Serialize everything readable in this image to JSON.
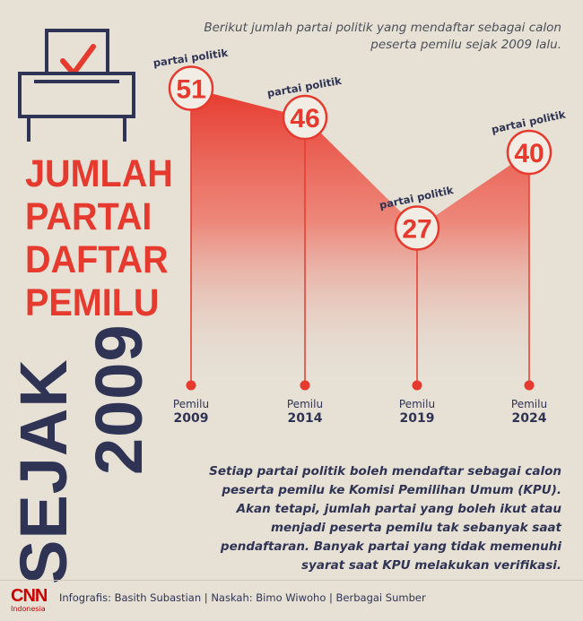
{
  "header": {
    "intro": "Berikut jumlah partai politik yang mendaftar sebagai calon peserta pemilu sejak 2009 lalu."
  },
  "title": {
    "line1": "JUMLAH",
    "line2": "PARTAI",
    "line3": "DAFTAR",
    "line4": "PEMILU",
    "vertical1": "SEJAK",
    "vertical2": "2009"
  },
  "description": "Setiap partai politik boleh mendaftar sebagai calon peserta pemilu ke Komisi Pemilihan Umum (KPU). Akan tetapi, jumlah partai yang boleh ikut atau menjadi peserta pemilu tak sebanyak saat pendaftaran. Banyak partai yang tidak memenuhi syarat saat KPU melakukan verifikasi.",
  "footer": {
    "logo_main": "CNN",
    "logo_sub": "Indonesia",
    "credits": "Infografis: Basith Subastian | Naskah: Bimo Wiwoho | Berbagai Sumber"
  },
  "colors": {
    "accent": "#e63a2e",
    "navy": "#2f3454",
    "background": "#e6e0d5"
  },
  "icons": {
    "ballot": "ballot-box-icon"
  },
  "chart_data": {
    "type": "area",
    "x_prefix": "Pemilu",
    "categories": [
      "2009",
      "2014",
      "2019",
      "2024"
    ],
    "values": [
      51,
      46,
      27,
      40
    ],
    "point_label": "partai politik",
    "ylim": [
      0,
      60
    ],
    "grid": false,
    "legend": "none"
  }
}
